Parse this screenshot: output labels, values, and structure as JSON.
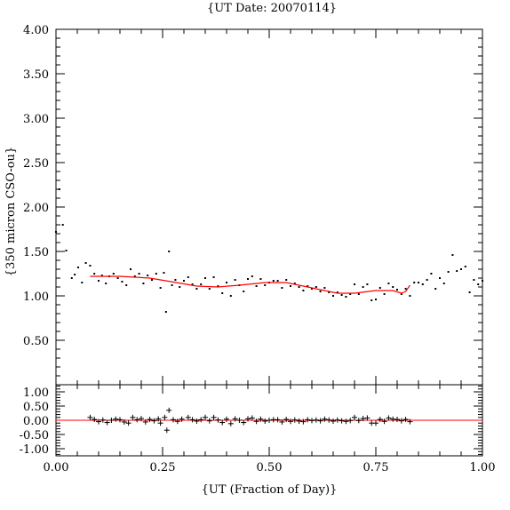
{
  "chart_data": [
    {
      "type": "scatter",
      "title": "{UT Date: 20070114}",
      "ylabel": "{350 micron CSO-ou}",
      "xlabel": "",
      "xlim": [
        0,
        1
      ],
      "ylim": [
        0,
        4
      ],
      "x_ticks": [
        "0.00",
        "0.25",
        "0.50",
        "0.75",
        "1.00"
      ],
      "y_ticks": [
        "0.50",
        "1.00",
        "1.50",
        "2.00",
        "2.50",
        "3.00",
        "3.50",
        "4.00"
      ],
      "grid": false,
      "series": [
        {
          "marker": "dot",
          "color": "#000000",
          "points": [
            [
              0.0,
              1.72
            ],
            [
              0.008,
              2.2
            ],
            [
              0.016,
              1.8
            ],
            [
              0.024,
              1.51
            ],
            [
              0.037,
              1.2
            ],
            [
              0.044,
              1.24
            ],
            [
              0.052,
              1.32
            ],
            [
              0.061,
              1.15
            ],
            [
              0.07,
              1.37
            ],
            [
              0.08,
              1.34
            ],
            [
              0.09,
              1.25
            ],
            [
              0.1,
              1.17
            ],
            [
              0.108,
              1.23
            ],
            [
              0.117,
              1.14
            ],
            [
              0.125,
              1.22
            ],
            [
              0.135,
              1.25
            ],
            [
              0.145,
              1.2
            ],
            [
              0.155,
              1.16
            ],
            [
              0.165,
              1.12
            ],
            [
              0.175,
              1.3
            ],
            [
              0.185,
              1.22
            ],
            [
              0.195,
              1.25
            ],
            [
              0.205,
              1.14
            ],
            [
              0.215,
              1.23
            ],
            [
              0.225,
              1.18
            ],
            [
              0.235,
              1.25
            ],
            [
              0.245,
              1.09
            ],
            [
              0.253,
              1.26
            ],
            [
              0.258,
              0.82
            ],
            [
              0.265,
              1.5
            ],
            [
              0.272,
              1.12
            ],
            [
              0.28,
              1.18
            ],
            [
              0.29,
              1.1
            ],
            [
              0.3,
              1.17
            ],
            [
              0.31,
              1.21
            ],
            [
              0.32,
              1.13
            ],
            [
              0.33,
              1.08
            ],
            [
              0.34,
              1.13
            ],
            [
              0.35,
              1.2
            ],
            [
              0.36,
              1.08
            ],
            [
              0.37,
              1.21
            ],
            [
              0.38,
              1.11
            ],
            [
              0.39,
              1.03
            ],
            [
              0.4,
              1.15
            ],
            [
              0.41,
              1.0
            ],
            [
              0.42,
              1.18
            ],
            [
              0.43,
              1.12
            ],
            [
              0.44,
              1.05
            ],
            [
              0.45,
              1.19
            ],
            [
              0.46,
              1.22
            ],
            [
              0.47,
              1.11
            ],
            [
              0.48,
              1.19
            ],
            [
              0.49,
              1.12
            ],
            [
              0.5,
              1.15
            ],
            [
              0.51,
              1.17
            ],
            [
              0.52,
              1.17
            ],
            [
              0.53,
              1.09
            ],
            [
              0.54,
              1.18
            ],
            [
              0.55,
              1.11
            ],
            [
              0.56,
              1.14
            ],
            [
              0.57,
              1.1
            ],
            [
              0.58,
              1.06
            ],
            [
              0.59,
              1.11
            ],
            [
              0.6,
              1.08
            ],
            [
              0.61,
              1.1
            ],
            [
              0.62,
              1.05
            ],
            [
              0.63,
              1.09
            ],
            [
              0.64,
              1.04
            ],
            [
              0.65,
              1.0
            ],
            [
              0.66,
              1.04
            ],
            [
              0.67,
              1.01
            ],
            [
              0.68,
              0.99
            ],
            [
              0.69,
              1.02
            ],
            [
              0.7,
              1.13
            ],
            [
              0.71,
              1.02
            ],
            [
              0.72,
              1.1
            ],
            [
              0.73,
              1.13
            ],
            [
              0.74,
              0.95
            ],
            [
              0.75,
              0.96
            ],
            [
              0.76,
              1.09
            ],
            [
              0.77,
              1.02
            ],
            [
              0.78,
              1.14
            ],
            [
              0.79,
              1.1
            ],
            [
              0.8,
              1.07
            ],
            [
              0.81,
              1.02
            ],
            [
              0.82,
              1.08
            ],
            [
              0.83,
              1.0
            ],
            [
              0.84,
              1.15
            ],
            [
              0.85,
              1.15
            ],
            [
              0.86,
              1.13
            ],
            [
              0.87,
              1.18
            ],
            [
              0.88,
              1.25
            ],
            [
              0.89,
              1.08
            ],
            [
              0.9,
              1.2
            ],
            [
              0.91,
              1.14
            ],
            [
              0.92,
              1.27
            ],
            [
              0.93,
              1.46
            ],
            [
              0.94,
              1.28
            ],
            [
              0.95,
              1.3
            ],
            [
              0.96,
              1.33
            ],
            [
              0.97,
              1.04
            ],
            [
              0.98,
              1.18
            ],
            [
              0.99,
              1.13
            ],
            [
              1.0,
              1.17
            ]
          ]
        },
        {
          "marker": "line",
          "color": "#ff0000",
          "points": [
            [
              0.08,
              1.22
            ],
            [
              0.15,
              1.22
            ],
            [
              0.22,
              1.2
            ],
            [
              0.27,
              1.16
            ],
            [
              0.33,
              1.11
            ],
            [
              0.38,
              1.1
            ],
            [
              0.43,
              1.12
            ],
            [
              0.49,
              1.15
            ],
            [
              0.54,
              1.15
            ],
            [
              0.6,
              1.09
            ],
            [
              0.66,
              1.03
            ],
            [
              0.7,
              1.03
            ],
            [
              0.75,
              1.06
            ],
            [
              0.79,
              1.06
            ],
            [
              0.81,
              1.03
            ],
            [
              0.82,
              1.05
            ],
            [
              0.83,
              1.12
            ]
          ]
        }
      ]
    },
    {
      "type": "scatter",
      "title": "",
      "ylabel": "",
      "xlabel": "{UT (Fraction of Day)}",
      "xlim": [
        0,
        1
      ],
      "ylim": [
        -1.25,
        1.25
      ],
      "x_ticks": [
        "0.00",
        "0.25",
        "0.50",
        "0.75",
        "1.00"
      ],
      "y_ticks": [
        "1.00",
        "0.50",
        "0.00",
        "-0.50",
        "-1.00"
      ],
      "grid": false,
      "reference_line": {
        "y": 0,
        "color": "#ff0000"
      },
      "series": [
        {
          "marker": "plus",
          "color": "#000000",
          "points": [
            [
              0.08,
              0.1
            ],
            [
              0.09,
              0.03
            ],
            [
              0.1,
              -0.05
            ],
            [
              0.11,
              0.01
            ],
            [
              0.12,
              -0.08
            ],
            [
              0.13,
              0.0
            ],
            [
              0.14,
              0.04
            ],
            [
              0.15,
              0.02
            ],
            [
              0.16,
              -0.06
            ],
            [
              0.17,
              -0.1
            ],
            [
              0.18,
              0.1
            ],
            [
              0.19,
              0.02
            ],
            [
              0.2,
              0.06
            ],
            [
              0.21,
              -0.06
            ],
            [
              0.22,
              0.03
            ],
            [
              0.23,
              -0.02
            ],
            [
              0.24,
              0.05
            ],
            [
              0.245,
              -0.1
            ],
            [
              0.255,
              0.1
            ],
            [
              0.26,
              -0.35
            ],
            [
              0.265,
              0.35
            ],
            [
              0.275,
              0.02
            ],
            [
              0.285,
              -0.04
            ],
            [
              0.295,
              0.04
            ],
            [
              0.31,
              0.1
            ],
            [
              0.32,
              0.02
            ],
            [
              0.33,
              -0.03
            ],
            [
              0.34,
              0.02
            ],
            [
              0.35,
              0.1
            ],
            [
              0.36,
              -0.02
            ],
            [
              0.37,
              0.1
            ],
            [
              0.38,
              0.01
            ],
            [
              0.39,
              -0.08
            ],
            [
              0.4,
              0.04
            ],
            [
              0.41,
              -0.12
            ],
            [
              0.42,
              0.05
            ],
            [
              0.43,
              0.0
            ],
            [
              0.44,
              -0.08
            ],
            [
              0.45,
              0.05
            ],
            [
              0.46,
              0.08
            ],
            [
              0.47,
              -0.04
            ],
            [
              0.48,
              0.04
            ],
            [
              0.49,
              -0.03
            ],
            [
              0.5,
              0.0
            ],
            [
              0.51,
              0.02
            ],
            [
              0.52,
              0.02
            ],
            [
              0.53,
              -0.06
            ],
            [
              0.54,
              0.03
            ],
            [
              0.55,
              -0.04
            ],
            [
              0.56,
              0.01
            ],
            [
              0.57,
              -0.03
            ],
            [
              0.58,
              -0.05
            ],
            [
              0.59,
              0.02
            ],
            [
              0.6,
              -0.01
            ],
            [
              0.61,
              0.01
            ],
            [
              0.62,
              -0.02
            ],
            [
              0.63,
              0.04
            ],
            [
              0.64,
              0.01
            ],
            [
              0.65,
              -0.03
            ],
            [
              0.66,
              0.01
            ],
            [
              0.67,
              -0.02
            ],
            [
              0.68,
              -0.04
            ],
            [
              0.69,
              -0.01
            ],
            [
              0.7,
              0.1
            ],
            [
              0.71,
              -0.01
            ],
            [
              0.72,
              0.06
            ],
            [
              0.73,
              0.08
            ],
            [
              0.74,
              -0.1
            ],
            [
              0.75,
              -0.1
            ],
            [
              0.76,
              0.03
            ],
            [
              0.77,
              -0.04
            ],
            [
              0.78,
              0.08
            ],
            [
              0.79,
              0.04
            ],
            [
              0.8,
              0.03
            ],
            [
              0.81,
              -0.02
            ],
            [
              0.82,
              0.03
            ],
            [
              0.83,
              -0.05
            ]
          ]
        }
      ]
    }
  ]
}
